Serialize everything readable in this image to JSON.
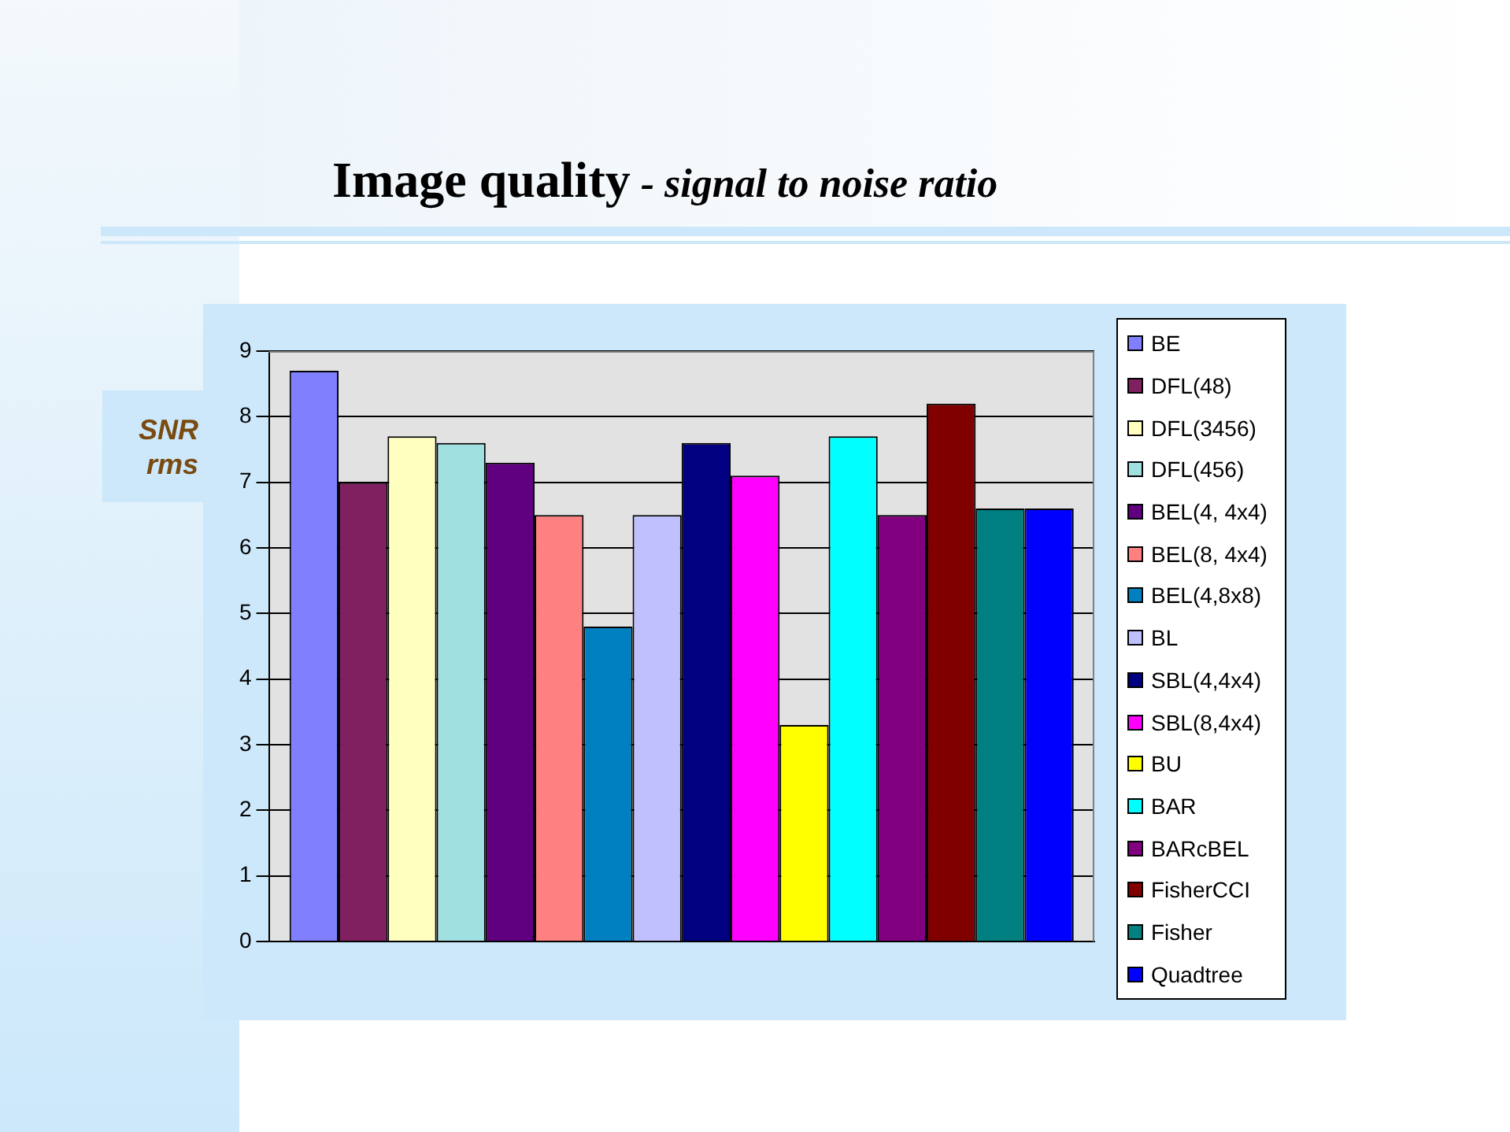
{
  "chart_data": {
    "type": "bar",
    "title": "Image quality",
    "subtitle": "- signal to noise ratio",
    "ylabel": "SNR rms",
    "categories": [
      null
    ],
    "series": [
      {
        "name": "BE",
        "color": "#8080ff",
        "values": [
          8.7
        ]
      },
      {
        "name": "DFL(48)",
        "color": "#802060",
        "values": [
          7.0
        ]
      },
      {
        "name": "DFL(3456)",
        "color": "#ffffc0",
        "values": [
          7.7
        ]
      },
      {
        "name": "DFL(456)",
        "color": "#a0e0e0",
        "values": [
          7.6
        ]
      },
      {
        "name": "BEL(4, 4x4)",
        "color": "#600080",
        "values": [
          7.3
        ]
      },
      {
        "name": "BEL(8, 4x4)",
        "color": "#ff8080",
        "values": [
          6.5
        ]
      },
      {
        "name": "BEL(4,8x8)",
        "color": "#0080c0",
        "values": [
          4.8
        ]
      },
      {
        "name": "BL",
        "color": "#c0c0ff",
        "values": [
          6.5
        ]
      },
      {
        "name": "SBL(4,4x4)",
        "color": "#000080",
        "values": [
          7.6
        ]
      },
      {
        "name": "SBL(8,4x4)",
        "color": "#ff00ff",
        "values": [
          7.1
        ]
      },
      {
        "name": "BU",
        "color": "#ffff00",
        "values": [
          3.3
        ]
      },
      {
        "name": "BAR",
        "color": "#00ffff",
        "values": [
          7.7
        ]
      },
      {
        "name": "BARcBEL",
        "color": "#800080",
        "values": [
          6.5
        ]
      },
      {
        "name": "FisherCCI",
        "color": "#800000",
        "values": [
          8.2
        ]
      },
      {
        "name": "Fisher",
        "color": "#008080",
        "values": [
          6.6
        ]
      },
      {
        "name": "Quadtree",
        "color": "#0000ff",
        "values": [
          6.6
        ]
      }
    ],
    "ylim": [
      0,
      9
    ],
    "yticks": [
      0,
      1,
      2,
      3,
      4,
      5,
      6,
      7,
      8,
      9
    ],
    "grid": "y",
    "legend": "right",
    "tick_labels": "y"
  }
}
